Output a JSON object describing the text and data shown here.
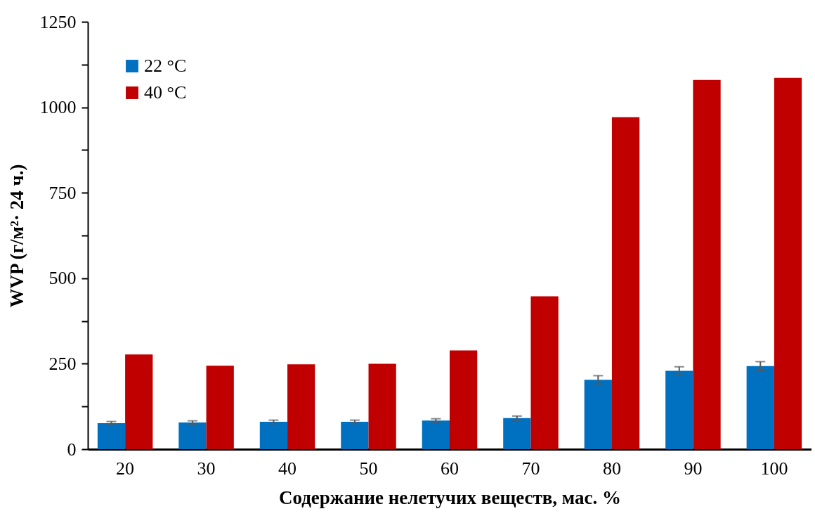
{
  "chart_data": {
    "type": "bar",
    "xlabel": "Содержание нелетучих веществ, мас. %",
    "ylabel": "WVP  (г/м²· 24 ч.)",
    "categories": [
      "20",
      "30",
      "40",
      "50",
      "60",
      "70",
      "80",
      "90",
      "100"
    ],
    "series": [
      {
        "name": "22 °C",
        "color": "#0070c0",
        "values": [
          76,
          78,
          80,
          80,
          84,
          91,
          203,
          229,
          243
        ],
        "errors": [
          5,
          5,
          5,
          5,
          5,
          6,
          12,
          12,
          13
        ]
      },
      {
        "name": "40 °C",
        "color": "#c00000",
        "values": [
          277,
          244,
          248,
          250,
          289,
          447,
          971,
          1080,
          1086
        ]
      }
    ],
    "ylim": [
      0,
      1250
    ],
    "yticks": [
      0,
      {
        "value": 125,
        "label": null
      },
      250,
      {
        "value": 375,
        "label": null
      },
      500,
      {
        "value": 625,
        "label": null
      },
      750,
      {
        "value": 875,
        "label": null
      },
      1000,
      {
        "value": 1125,
        "label": null
      },
      1250
    ],
    "grid": false,
    "legend": "top left"
  }
}
